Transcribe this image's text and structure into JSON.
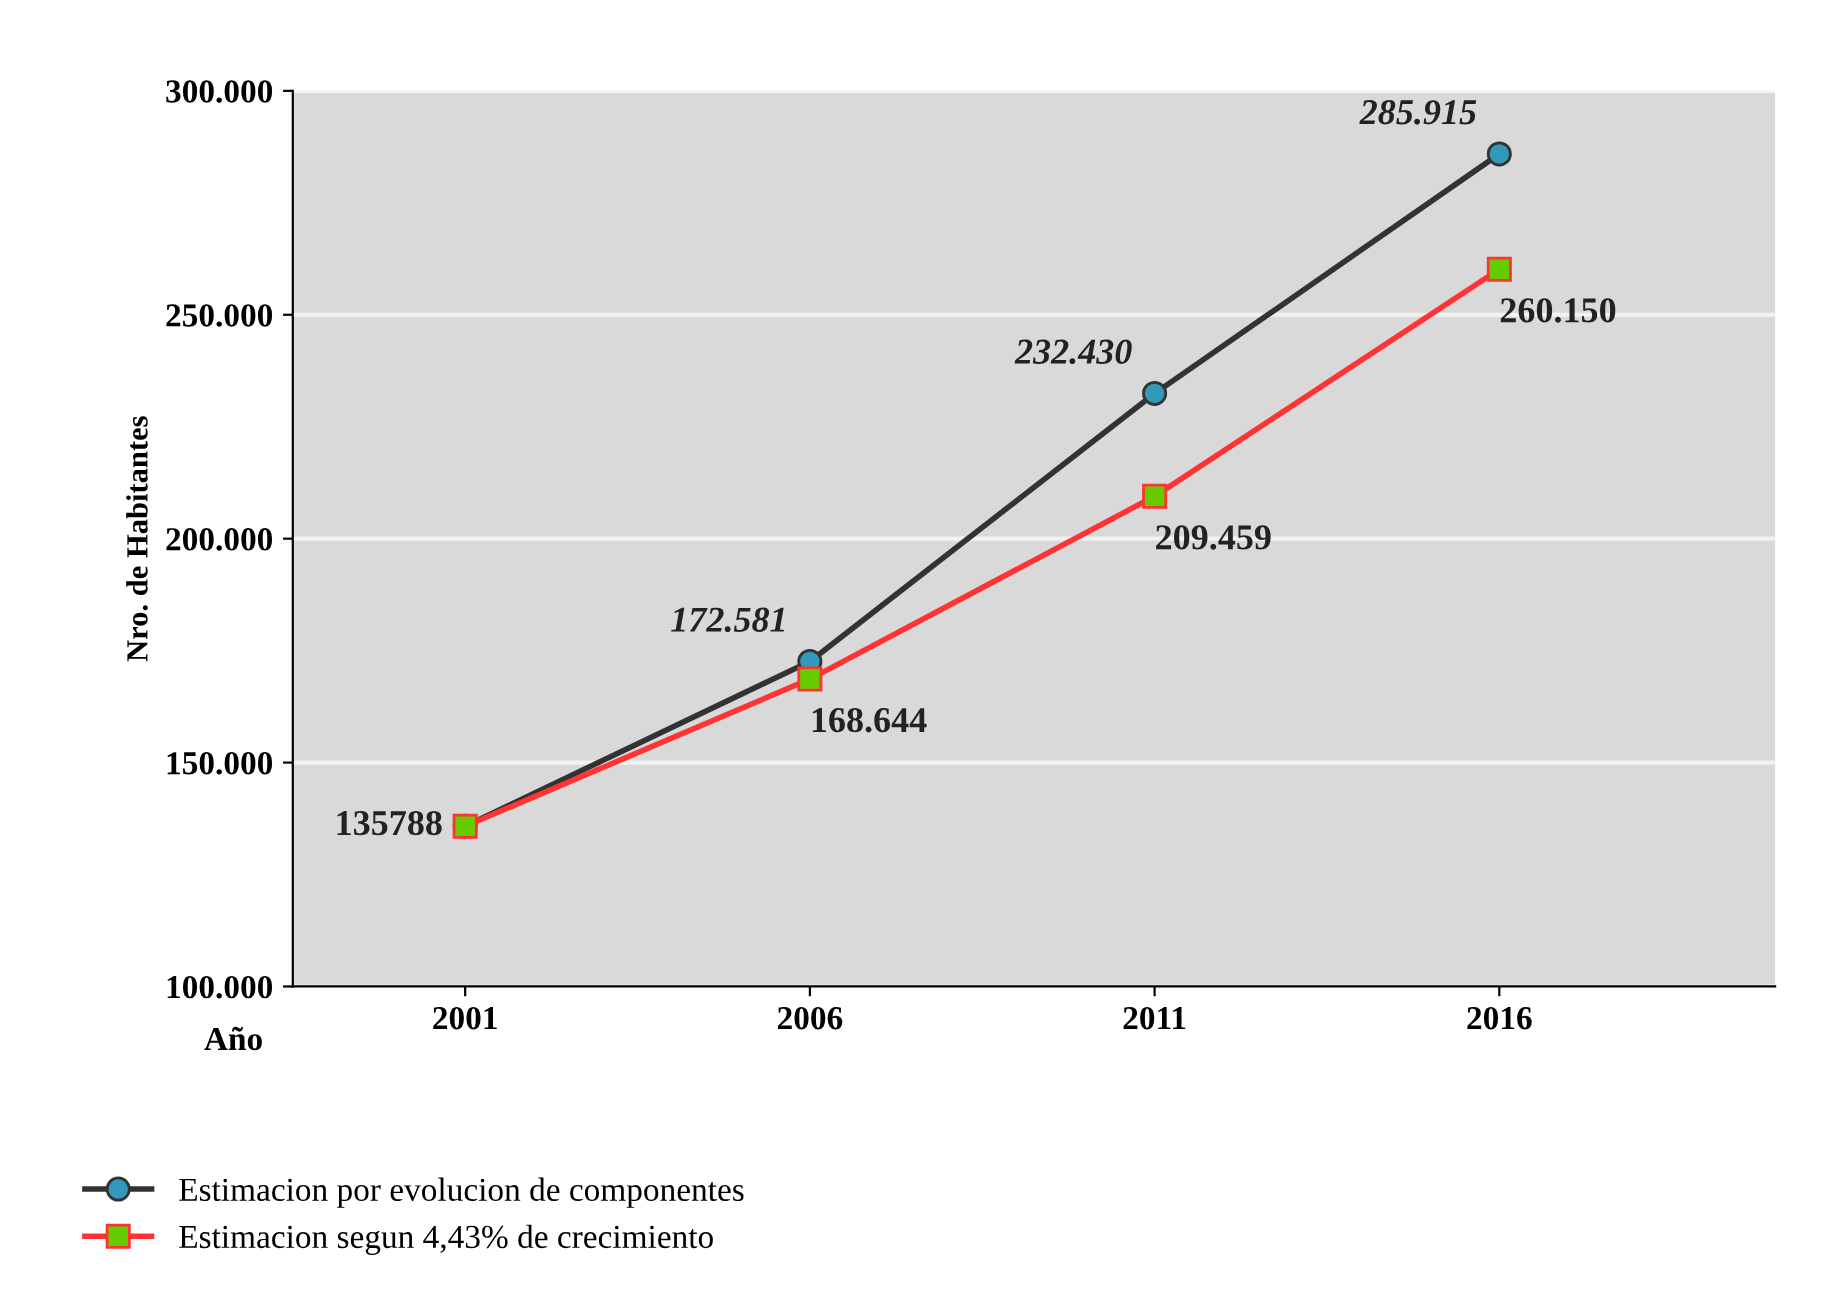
{
  "chart_data": {
    "type": "line",
    "xlabel": "Año",
    "ylabel": "Nro. de Habitantes",
    "categories": [
      "2001",
      "2006",
      "2011",
      "2016"
    ],
    "ylim": [
      100000,
      300000
    ],
    "yticks": [
      {
        "value": 100000,
        "label": "100.000"
      },
      {
        "value": 150000,
        "label": "150.000"
      },
      {
        "value": 200000,
        "label": "200.000"
      },
      {
        "value": 250000,
        "label": "250.000"
      },
      {
        "value": 300000,
        "label": "300.000"
      }
    ],
    "grid": "y",
    "legend": "bottom",
    "series": [
      {
        "name": "Estimacion por evolucion de componentes",
        "color": "#333333",
        "marker": "circle",
        "values": [
          135788,
          172581,
          232430,
          285915
        ],
        "value_labels": [
          null,
          "172.581",
          "232.430",
          "285.915"
        ]
      },
      {
        "name": "Estimacion segun 4,43% de crecimiento",
        "color": "#ff3333",
        "marker": "square",
        "values": [
          135788,
          168644,
          209459,
          260150
        ],
        "value_labels": [
          "135788",
          "168.644",
          "209.459",
          "260.150"
        ]
      }
    ]
  }
}
